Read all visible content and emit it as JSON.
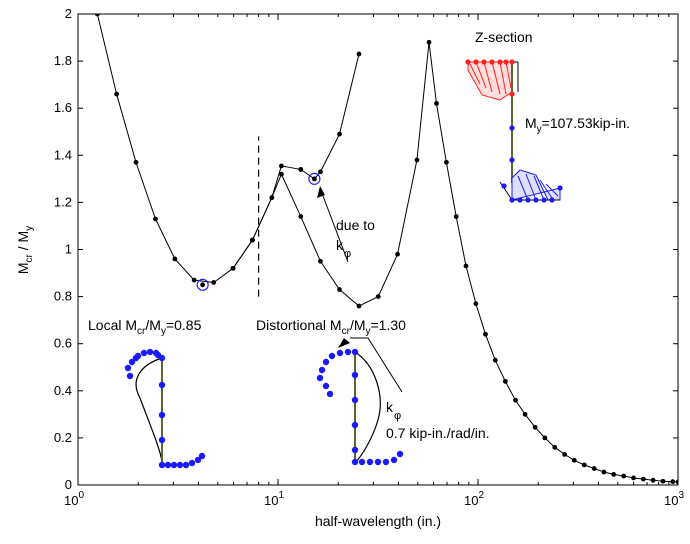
{
  "chart_data": {
    "type": "line",
    "xscale": "log",
    "xlim": [
      1,
      1000
    ],
    "ylim": [
      0,
      2
    ],
    "xlabel": "half-wavelength (in.)",
    "ylabel": {
      "m": "M",
      "cr": "cr",
      "sep": " / M",
      "y": "y"
    },
    "x_ticks": [
      {
        "base": "10",
        "exp": "0",
        "value": 1
      },
      {
        "base": "10",
        "exp": "1",
        "value": 10
      },
      {
        "base": "10",
        "exp": "2",
        "value": 100
      },
      {
        "base": "10",
        "exp": "3",
        "value": 1000
      }
    ],
    "y_ticks": [
      "0",
      "0.2",
      "0.4",
      "0.6",
      "0.8",
      "1",
      "1.2",
      "1.4",
      "1.6",
      "1.8",
      "2"
    ],
    "series": [
      {
        "x": [
          1.25,
          1.56,
          1.95,
          2.44,
          3.05,
          3.81,
          4.77,
          5.96,
          7.45,
          9.31,
          10.4,
          13.0,
          16.3,
          20.3,
          25.4,
          31.7,
          39.6,
          49.5,
          56.9,
          62.0,
          69.5,
          77.8,
          87.1,
          97.6,
          109,
          122,
          137,
          154,
          172,
          193,
          216,
          242,
          271,
          303,
          340,
          381,
          426,
          477,
          535,
          599,
          671,
          751,
          841,
          942,
          1000
        ],
        "y": [
          2.0,
          1.66,
          1.37,
          1.13,
          0.96,
          0.87,
          0.86,
          0.92,
          1.04,
          1.22,
          1.32,
          1.14,
          0.95,
          0.83,
          0.76,
          0.8,
          0.98,
          1.38,
          1.88,
          1.62,
          1.37,
          1.14,
          0.93,
          0.77,
          0.64,
          0.53,
          0.44,
          0.36,
          0.3,
          0.245,
          0.2,
          0.16,
          0.13,
          0.105,
          0.085,
          0.07,
          0.055,
          0.045,
          0.038,
          0.03,
          0.025,
          0.02,
          0.016,
          0.014,
          0.013
        ]
      },
      {
        "x": [
          5.96,
          7.45,
          9.31,
          10.4,
          13.0,
          15.2,
          16.3,
          20.3,
          25.4
        ],
        "y": [
          0.92,
          1.04,
          1.22,
          1.355,
          1.34,
          1.3,
          1.33,
          1.49,
          1.83
        ]
      }
    ],
    "markers": [
      {
        "x": 4.2,
        "y": 0.85
      },
      {
        "x": 15.2,
        "y": 1.3
      }
    ],
    "boundary": {
      "x": 8,
      "y": [
        0.8,
        1.48
      ]
    },
    "annotations": {
      "local": {
        "pre": "Local M",
        "sub1": "cr",
        "mid": "/M",
        "sub2": "y",
        "post": "=0.85"
      },
      "dist": {
        "pre": "Distortional M",
        "sub1": "cr",
        "mid": "/M",
        "sub2": "y",
        "post": "=1.30"
      },
      "due_to": "due to",
      "kphi1": {
        "k": "k",
        "sub": "φ"
      },
      "kphi2": {
        "k": "k",
        "sub": "φ"
      },
      "stiffness": "0.7 kip-in./rad/in.",
      "z_section": "Z-section",
      "my": {
        "pre": "M",
        "sub": "y",
        "post": "=107.53kip-in."
      }
    }
  },
  "colors": {
    "points": "#1a1aff",
    "red": "#ff2020",
    "line": "#000000"
  }
}
